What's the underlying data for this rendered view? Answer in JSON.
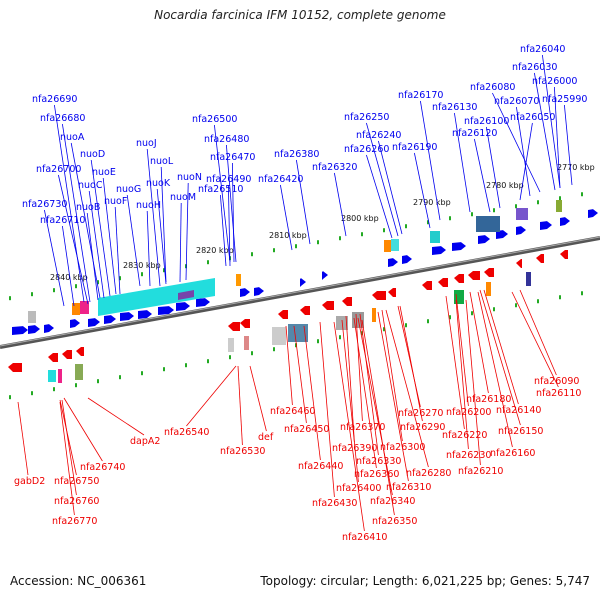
{
  "title": "Nocardia farcinica IFM 10152, complete genome",
  "footer": {
    "accession": "Accession: NC_006361",
    "summary": "Topology: circular; Length: 6,021,225 bp; Genes: 5,747"
  },
  "colors": {
    "forward_strand": "#0000ee",
    "reverse_strand": "#ee0000",
    "backbone": "#777777",
    "tick": "#22aa22"
  },
  "kbp_ticks": [
    "2770 kbp",
    "2780 kbp",
    "2790 kbp",
    "2800 kbp",
    "2810 kbp",
    "2820 kbp",
    "2830 kbp",
    "2840 kbp"
  ],
  "forward_labels": [
    "nfa26040",
    "nfa26030",
    "nfa26000",
    "nfa25990",
    "nfa26080",
    "nfa26070",
    "nfa26050",
    "nfa26170",
    "nfa26130",
    "nfa26100",
    "nfa26120",
    "nfa26250",
    "nfa26240",
    "nfa26260",
    "nfa26190",
    "nfa26380",
    "nfa26320",
    "nfa26420",
    "nfa26500",
    "nfa26480",
    "nfa26470",
    "nfa26490",
    "nfa26510",
    "nuoJ",
    "nuoL",
    "nuoK",
    "nuoN",
    "nuoM",
    "nuoG",
    "nuoH",
    "nfa26690",
    "nfa26680",
    "nuoA",
    "nuoD",
    "nfa26700",
    "nuoE",
    "nuoC",
    "nuoF",
    "nuoB",
    "nfa26730",
    "nfa26710"
  ],
  "reverse_labels": [
    "nfa26090",
    "nfa26110",
    "nfa26180",
    "nfa26200",
    "nfa26140",
    "nfa26220",
    "nfa26150",
    "nfa26230",
    "nfa26160",
    "nfa26210",
    "nfa26270",
    "nfa26290",
    "nfa26300",
    "nfa26280",
    "nfa26310",
    "nfa26370",
    "nfa26390",
    "nfa26330",
    "nfa26360",
    "nfa26340",
    "nfa26400",
    "nfa26350",
    "nfa26460",
    "nfa26450",
    "nfa26440",
    "nfa26430",
    "nfa26410",
    "nfa26540",
    "nfa26530",
    "def",
    "dapA2",
    "nfa26740",
    "nfa26750",
    "nfa26760",
    "nfa26770",
    "gabD2"
  ]
}
